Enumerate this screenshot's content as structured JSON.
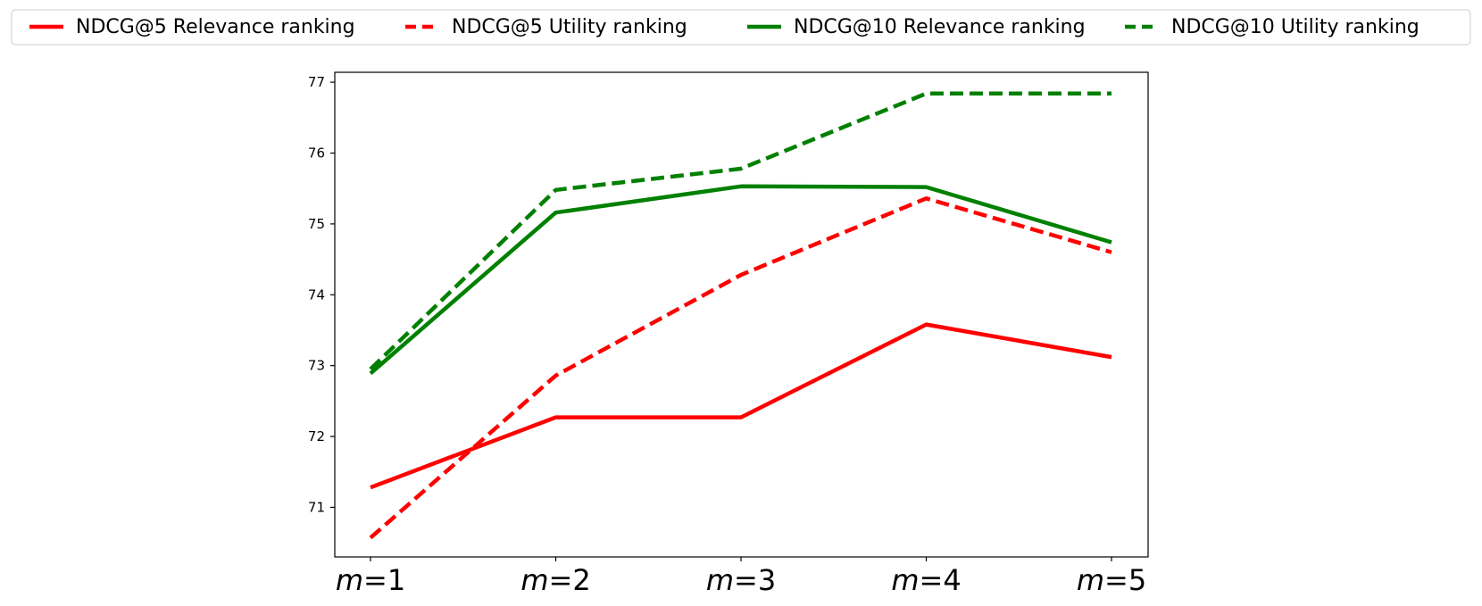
{
  "chart_data": {
    "type": "line",
    "categories": [
      "m=1",
      "m=2",
      "m=3",
      "m=4",
      "m=5"
    ],
    "category_parts": [
      {
        "var": "m",
        "rest": "=1"
      },
      {
        "var": "m",
        "rest": "=2"
      },
      {
        "var": "m",
        "rest": "=3"
      },
      {
        "var": "m",
        "rest": "=4"
      },
      {
        "var": "m",
        "rest": "=5"
      }
    ],
    "series": [
      {
        "name": "NDCG@5 Relevance ranking",
        "color": "#ff0000",
        "style": "solid",
        "values": [
          71.28,
          72.27,
          72.27,
          73.58,
          73.12
        ]
      },
      {
        "name": "NDCG@5 Utility ranking",
        "color": "#ff0000",
        "style": "dashed",
        "values": [
          70.57,
          72.86,
          74.28,
          75.36,
          74.6
        ]
      },
      {
        "name": "NDCG@10 Relevance ranking",
        "color": "#008000",
        "style": "solid",
        "values": [
          72.89,
          75.16,
          75.53,
          75.52,
          74.74
        ]
      },
      {
        "name": "NDCG@10 Utility ranking",
        "color": "#008000",
        "style": "dashed",
        "values": [
          72.95,
          75.48,
          75.78,
          76.84,
          76.84
        ]
      }
    ],
    "y_ticks": [
      71,
      72,
      73,
      74,
      75,
      76,
      77
    ],
    "ylim": [
      70.3,
      77.14
    ],
    "legend_position": "top",
    "grid": false,
    "title": "",
    "xlabel": "",
    "ylabel": ""
  }
}
